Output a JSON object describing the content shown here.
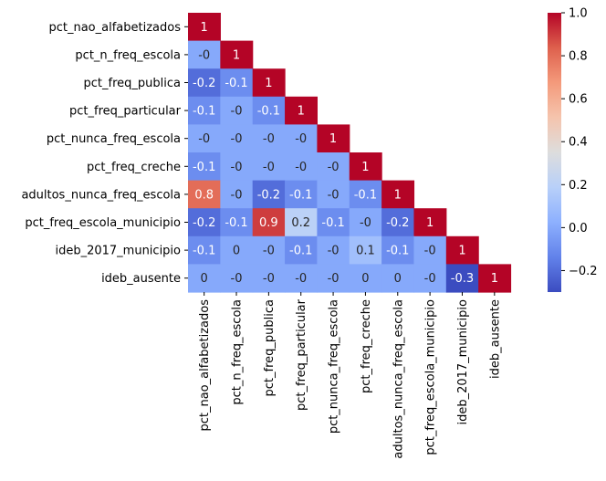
{
  "chart_data": {
    "type": "heatmap",
    "mask": "lower-triangle",
    "colormap": "coolwarm",
    "labels": [
      "pct_nao_alfabetizados",
      "pct_n_freq_escola",
      "pct_freq_publica",
      "pct_freq_particular",
      "pct_nunca_freq_escola",
      "pct_freq_creche",
      "adultos_nunca_freq_escola",
      "pct_freq_escola_municipio",
      "ideb_2017_municipio",
      "ideb_ausente"
    ],
    "values": [
      [
        1
      ],
      [
        -0.0,
        1
      ],
      [
        -0.2,
        -0.1,
        1
      ],
      [
        -0.1,
        -0.0,
        -0.1,
        1
      ],
      [
        -0.0,
        -0.0,
        -0.0,
        -0.0,
        1
      ],
      [
        -0.1,
        -0.0,
        -0.0,
        -0.0,
        -0.0,
        1
      ],
      [
        0.8,
        -0.0,
        -0.2,
        -0.1,
        -0.0,
        -0.1,
        1
      ],
      [
        -0.2,
        -0.1,
        0.9,
        0.2,
        -0.1,
        -0.0,
        -0.2,
        1
      ],
      [
        -0.1,
        0.0,
        -0.0,
        -0.1,
        -0.0,
        0.1,
        -0.1,
        -0.0,
        1
      ],
      [
        0.0,
        -0.0,
        -0.0,
        -0.0,
        -0.0,
        0.0,
        0.0,
        -0.0,
        -0.3,
        1
      ]
    ],
    "value_labels": [
      [
        "1"
      ],
      [
        "-0",
        "1"
      ],
      [
        "-0.2",
        "-0.1",
        "1"
      ],
      [
        "-0.1",
        "-0",
        "-0.1",
        "1"
      ],
      [
        "-0",
        "-0",
        "-0",
        "-0",
        "1"
      ],
      [
        "-0.1",
        "-0",
        "-0",
        "-0",
        "-0",
        "1"
      ],
      [
        "0.8",
        "-0",
        "-0.2",
        "-0.1",
        "-0",
        "-0.1",
        "1"
      ],
      [
        "-0.2",
        "-0.1",
        "0.9",
        "0.2",
        "-0.1",
        "-0",
        "-0.2",
        "1"
      ],
      [
        "-0.1",
        "0",
        "-0",
        "-0.1",
        "-0",
        "0.1",
        "-0.1",
        "-0",
        "1"
      ],
      [
        "0",
        "-0",
        "-0",
        "-0",
        "-0",
        "0",
        "0",
        "-0",
        "-0.3",
        "1"
      ]
    ],
    "colorbar": {
      "vmin": -0.3,
      "vmax": 1.0,
      "ticks": [
        1.0,
        0.8,
        0.6,
        0.4,
        0.2,
        0.0,
        -0.2
      ],
      "tick_labels": [
        "1.0",
        "0.8",
        "0.6",
        "0.4",
        "0.2",
        "0.0",
        "−0.2"
      ]
    },
    "title": "",
    "xlabel": "",
    "ylabel": ""
  }
}
